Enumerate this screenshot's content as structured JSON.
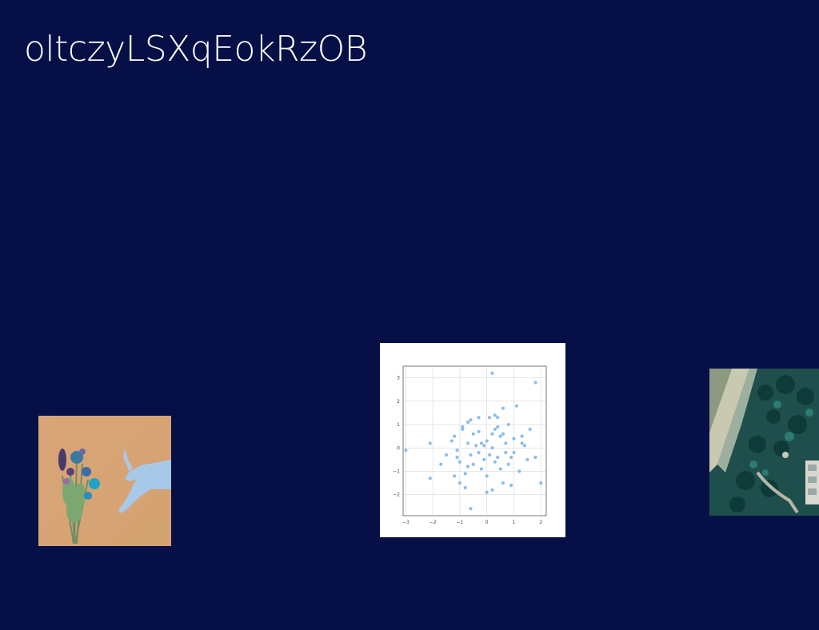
{
  "slide": {
    "title": "oltczyLSXqEokRzOB"
  },
  "images": [
    {
      "name": "bouquet-and-hand-photo",
      "kind": "photo"
    },
    {
      "name": "scatter-plot-image",
      "kind": "chart"
    },
    {
      "name": "aerial-coast-photo",
      "kind": "photo"
    }
  ],
  "chart_data": {
    "type": "scatter",
    "title": "",
    "xlabel": "",
    "ylabel": "",
    "xlim": [
      -3.1,
      2.2
    ],
    "ylim": [
      -2.9,
      3.5
    ],
    "xticks": [
      "−3",
      "−2",
      "−1",
      "0",
      "1",
      "2"
    ],
    "yticks": [
      "−2",
      "−1",
      "0",
      "1",
      "2",
      "3"
    ],
    "grid": true,
    "marker_color": "#7fb6ea",
    "points": [
      [
        -3.0,
        -0.1
      ],
      [
        -2.1,
        0.2
      ],
      [
        -2.1,
        -1.3
      ],
      [
        -1.7,
        -0.7
      ],
      [
        -1.5,
        -0.3
      ],
      [
        -1.3,
        0.3
      ],
      [
        -1.2,
        0.5
      ],
      [
        -1.1,
        -0.4
      ],
      [
        -1.0,
        -0.6
      ],
      [
        -1.0,
        -1.5
      ],
      [
        -1.2,
        -1.2
      ],
      [
        -0.9,
        0.9
      ],
      [
        -0.9,
        0.8
      ],
      [
        -0.8,
        -1.7
      ],
      [
        -0.8,
        -1.1
      ],
      [
        -0.7,
        1.1
      ],
      [
        -0.7,
        0.2
      ],
      [
        -0.7,
        -0.8
      ],
      [
        -0.6,
        1.2
      ],
      [
        -0.6,
        -0.3
      ],
      [
        -0.5,
        -0.7
      ],
      [
        -0.4,
        0.1
      ],
      [
        -0.3,
        0.7
      ],
      [
        -0.3,
        1.3
      ],
      [
        -0.2,
        0.2
      ],
      [
        -0.1,
        0.1
      ],
      [
        -0.1,
        -0.5
      ],
      [
        0.0,
        0.3
      ],
      [
        0.0,
        -1.2
      ],
      [
        0.0,
        -1.9
      ],
      [
        0.1,
        -0.3
      ],
      [
        0.1,
        1.3
      ],
      [
        0.2,
        3.2
      ],
      [
        0.2,
        0.0
      ],
      [
        0.2,
        -1.8
      ],
      [
        0.3,
        1.4
      ],
      [
        0.3,
        0.8
      ],
      [
        0.3,
        -0.6
      ],
      [
        0.4,
        1.3
      ],
      [
        0.4,
        -0.4
      ],
      [
        0.5,
        -0.9
      ],
      [
        0.5,
        0.5
      ],
      [
        0.6,
        1.7
      ],
      [
        0.6,
        -1.5
      ],
      [
        0.7,
        0.2
      ],
      [
        0.7,
        -0.2
      ],
      [
        0.8,
        -0.7
      ],
      [
        0.8,
        1.0
      ],
      [
        0.9,
        -1.6
      ],
      [
        1.0,
        0.4
      ],
      [
        1.0,
        -0.2
      ],
      [
        1.1,
        1.8
      ],
      [
        1.2,
        -1.0
      ],
      [
        1.3,
        0.5
      ],
      [
        1.3,
        0.2
      ],
      [
        1.4,
        0.1
      ],
      [
        1.5,
        -0.5
      ],
      [
        1.6,
        0.8
      ],
      [
        1.8,
        2.8
      ],
      [
        1.8,
        -0.4
      ],
      [
        2.0,
        -1.5
      ],
      [
        -0.3,
        -0.2
      ],
      [
        0.2,
        0.6
      ],
      [
        -0.5,
        0.6
      ],
      [
        -0.6,
        -2.6
      ],
      [
        0.6,
        0.6
      ],
      [
        0.9,
        -0.4
      ],
      [
        -1.1,
        -0.1
      ],
      [
        -0.2,
        -0.9
      ],
      [
        0.4,
        0.9
      ]
    ]
  }
}
